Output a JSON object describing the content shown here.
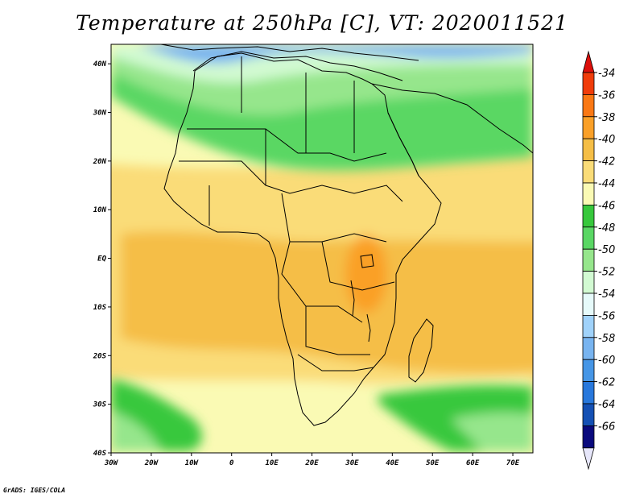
{
  "title": "Temperature at 250hPa [C], VT: 2020011521",
  "credit": "GrADS: IGES/COLA",
  "map": {
    "lon_range": [
      -30,
      75
    ],
    "lat_range": [
      -40,
      44
    ],
    "lon_ticks": [
      {
        "value": -30,
        "label": "30W"
      },
      {
        "value": -20,
        "label": "20W"
      },
      {
        "value": -10,
        "label": "10W"
      },
      {
        "value": 0,
        "label": "0"
      },
      {
        "value": 10,
        "label": "10E"
      },
      {
        "value": 20,
        "label": "20E"
      },
      {
        "value": 30,
        "label": "30E"
      },
      {
        "value": 40,
        "label": "40E"
      },
      {
        "value": 50,
        "label": "50E"
      },
      {
        "value": 60,
        "label": "60E"
      },
      {
        "value": 70,
        "label": "70E"
      }
    ],
    "lat_ticks": [
      {
        "value": 40,
        "label": "40N"
      },
      {
        "value": 30,
        "label": "30N"
      },
      {
        "value": 20,
        "label": "20N"
      },
      {
        "value": 10,
        "label": "10N"
      },
      {
        "value": 0,
        "label": "EQ"
      },
      {
        "value": -10,
        "label": "10S"
      },
      {
        "value": -20,
        "label": "20S"
      },
      {
        "value": -30,
        "label": "30S"
      },
      {
        "value": -40,
        "label": "40S"
      }
    ]
  },
  "colorbar": {
    "labels": [
      "-34",
      "-36",
      "-38",
      "-40",
      "-42",
      "-44",
      "-46",
      "-48",
      "-50",
      "-52",
      "-54",
      "-56",
      "-58",
      "-60",
      "-62",
      "-64",
      "-66"
    ],
    "colors": [
      "#f03c0a",
      "#fa7814",
      "#faa028",
      "#f5be46",
      "#fadc78",
      "#fafab4",
      "#37c83c",
      "#5ad764",
      "#96e68c",
      "#d2fad2",
      "#e6fafa",
      "#a0d2fa",
      "#78b4f0",
      "#4696e6",
      "#2878dc",
      "#1450b4",
      "#0a0a7d"
    ],
    "top_triangle_color": "#dc0f0a",
    "bottom_triangle_color": "#e6e6fa"
  }
}
